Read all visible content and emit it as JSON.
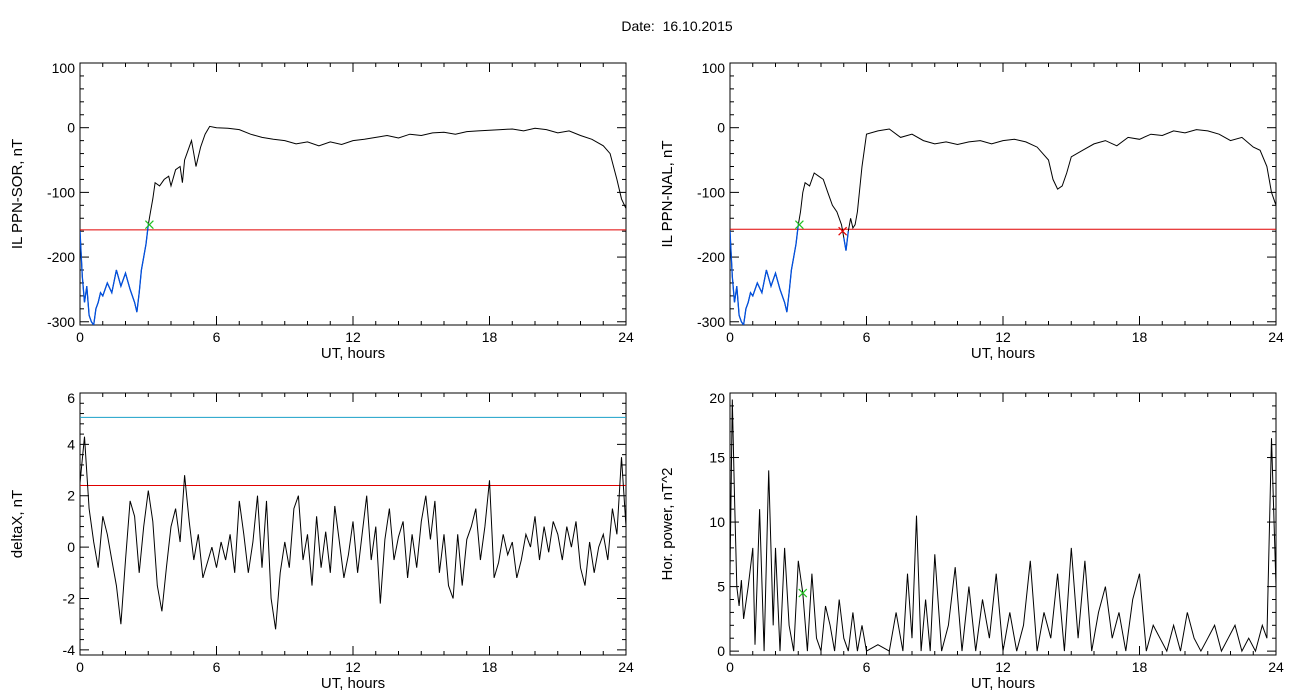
{
  "page": {
    "title": "Date:  16.10.2015"
  },
  "colors": {
    "trace": "#000000",
    "threshold_red": "#e00000",
    "threshold_blue": "#1aa0c8",
    "segment_blue": "#0050e0",
    "marker_green": "#20c020",
    "marker_red": "#e00000"
  },
  "chart_data": [
    {
      "id": "sor",
      "type": "line",
      "xlabel": "UT, hours",
      "ylabel": "IL PPN-SOR, nT",
      "xlim": [
        0,
        24
      ],
      "ylim": [
        -305,
        100
      ],
      "xticks": [
        0,
        6,
        12,
        18,
        24
      ],
      "yticks": [
        100,
        0,
        -100,
        -200,
        -300
      ],
      "hlines": [
        {
          "y": -158,
          "color": "threshold_red"
        }
      ],
      "markers": [
        {
          "x": 3.05,
          "y": -150,
          "color": "marker_green"
        }
      ],
      "highlight": {
        "from": 0,
        "to": 3.05,
        "color": "segment_blue"
      },
      "series": [
        {
          "x": [
            0,
            0.1,
            0.2,
            0.3,
            0.4,
            0.5,
            0.6,
            0.7,
            0.8,
            0.9,
            1.0,
            1.2,
            1.4,
            1.6,
            1.8,
            2.0,
            2.2,
            2.4,
            2.5,
            2.6,
            2.7,
            2.8,
            2.9,
            3.0,
            3.1,
            3.2,
            3.3,
            3.5,
            3.7,
            3.9,
            4.0,
            4.2,
            4.4,
            4.5,
            4.6,
            4.7,
            4.8,
            4.9,
            5.0,
            5.1,
            5.3,
            5.5,
            5.7,
            6.0,
            6.5,
            7.0,
            7.5,
            8.0,
            8.5,
            9.0,
            9.5,
            10.0,
            10.5,
            11.0,
            11.5,
            12.0,
            12.5,
            13.0,
            13.5,
            14.0,
            14.5,
            15.0,
            15.5,
            16.0,
            16.5,
            17.0,
            17.5,
            18.0,
            18.5,
            19.0,
            19.5,
            20.0,
            20.5,
            21.0,
            21.5,
            22.0,
            22.5,
            23.0,
            23.3,
            23.6,
            23.8,
            24.0
          ],
          "y": [
            -160,
            -230,
            -270,
            -245,
            -290,
            -300,
            -305,
            -280,
            -270,
            -255,
            -260,
            -240,
            -255,
            -220,
            -245,
            -225,
            -250,
            -270,
            -285,
            -255,
            -220,
            -200,
            -180,
            -150,
            -130,
            -110,
            -85,
            -90,
            -80,
            -75,
            -90,
            -65,
            -60,
            -85,
            -50,
            -40,
            -30,
            -20,
            -40,
            -60,
            -30,
            -10,
            2,
            0,
            -1,
            -3,
            -10,
            -15,
            -18,
            -20,
            -25,
            -22,
            -28,
            -22,
            -26,
            -20,
            -18,
            -15,
            -12,
            -16,
            -10,
            -12,
            -8,
            -7,
            -10,
            -6,
            -5,
            -4,
            -3,
            -2,
            -5,
            -1,
            -3,
            -8,
            -5,
            -12,
            -18,
            -28,
            -40,
            -80,
            -110,
            -125
          ]
        }
      ]
    },
    {
      "id": "nal",
      "type": "line",
      "xlabel": "UT, hours",
      "ylabel": "IL PPN-NAL, nT",
      "xlim": [
        0,
        24
      ],
      "ylim": [
        -305,
        100
      ],
      "xticks": [
        0,
        6,
        12,
        18,
        24
      ],
      "yticks": [
        100,
        0,
        -100,
        -200,
        -300
      ],
      "hlines": [
        {
          "y": -157,
          "color": "threshold_red"
        }
      ],
      "markers": [
        {
          "x": 3.05,
          "y": -150,
          "color": "marker_green"
        },
        {
          "x": 4.95,
          "y": -160,
          "color": "marker_red"
        }
      ],
      "highlight": {
        "from": 0,
        "to": 3.05,
        "color": "segment_blue"
      },
      "highlight2": {
        "from": 4.95,
        "to": 5.2,
        "color": "segment_blue"
      },
      "series": [
        {
          "x": [
            0,
            0.1,
            0.2,
            0.3,
            0.4,
            0.5,
            0.6,
            0.7,
            0.8,
            0.9,
            1.0,
            1.2,
            1.4,
            1.6,
            1.8,
            2.0,
            2.2,
            2.4,
            2.5,
            2.6,
            2.7,
            2.8,
            2.9,
            3.0,
            3.1,
            3.2,
            3.3,
            3.5,
            3.7,
            3.9,
            4.1,
            4.3,
            4.5,
            4.7,
            4.9,
            5.0,
            5.1,
            5.2,
            5.3,
            5.4,
            5.5,
            5.6,
            5.8,
            6.0,
            6.5,
            7.0,
            7.5,
            8.0,
            8.5,
            9.0,
            9.5,
            10.0,
            10.5,
            11.0,
            11.5,
            12.0,
            12.5,
            13.0,
            13.5,
            14.0,
            14.2,
            14.4,
            14.6,
            14.8,
            15.0,
            15.5,
            16.0,
            16.5,
            17.0,
            17.5,
            18.0,
            18.5,
            19.0,
            19.5,
            20.0,
            20.5,
            21.0,
            21.5,
            22.0,
            22.5,
            23.0,
            23.3,
            23.6,
            23.8,
            24.0
          ],
          "y": [
            -160,
            -230,
            -270,
            -245,
            -290,
            -300,
            -305,
            -280,
            -270,
            -255,
            -260,
            -240,
            -255,
            -220,
            -245,
            -225,
            -250,
            -270,
            -285,
            -255,
            -220,
            -200,
            -180,
            -150,
            -130,
            -100,
            -85,
            -90,
            -70,
            -75,
            -80,
            -100,
            -120,
            -130,
            -150,
            -170,
            -190,
            -160,
            -140,
            -155,
            -150,
            -130,
            -60,
            -10,
            -5,
            -2,
            -15,
            -10,
            -20,
            -25,
            -22,
            -26,
            -22,
            -20,
            -25,
            -20,
            -18,
            -22,
            -30,
            -50,
            -80,
            -95,
            -90,
            -70,
            -45,
            -35,
            -25,
            -20,
            -28,
            -15,
            -18,
            -10,
            -12,
            -5,
            -8,
            -3,
            -5,
            -10,
            -20,
            -15,
            -30,
            -35,
            -60,
            -100,
            -120
          ]
        }
      ]
    },
    {
      "id": "deltax",
      "type": "line",
      "xlabel": "UT, hours",
      "ylabel": "deltaX, nT",
      "xlim": [
        0,
        24
      ],
      "ylim": [
        -4.2,
        6
      ],
      "xticks": [
        0,
        6,
        12,
        18,
        24
      ],
      "yticks": [
        6,
        4,
        2,
        0,
        -2,
        -4
      ],
      "hlines": [
        {
          "y": 5.05,
          "color": "threshold_blue"
        },
        {
          "y": 2.4,
          "color": "threshold_red"
        }
      ],
      "markers": [],
      "series": [
        {
          "x": [
            0,
            0.2,
            0.4,
            0.6,
            0.8,
            1.0,
            1.2,
            1.4,
            1.6,
            1.8,
            2.0,
            2.2,
            2.4,
            2.6,
            2.8,
            3.0,
            3.2,
            3.4,
            3.6,
            3.8,
            4.0,
            4.2,
            4.4,
            4.6,
            4.8,
            5.0,
            5.2,
            5.4,
            5.6,
            5.8,
            6.0,
            6.2,
            6.4,
            6.6,
            6.8,
            7.0,
            7.2,
            7.4,
            7.6,
            7.8,
            8.0,
            8.2,
            8.4,
            8.6,
            8.8,
            9.0,
            9.2,
            9.4,
            9.6,
            9.8,
            10.0,
            10.2,
            10.4,
            10.6,
            10.8,
            11.0,
            11.2,
            11.4,
            11.6,
            11.8,
            12.0,
            12.2,
            12.4,
            12.6,
            12.8,
            13.0,
            13.2,
            13.4,
            13.6,
            13.8,
            14.0,
            14.2,
            14.4,
            14.6,
            14.8,
            15.0,
            15.2,
            15.4,
            15.6,
            15.8,
            16.0,
            16.2,
            16.4,
            16.6,
            16.8,
            17.0,
            17.2,
            17.4,
            17.6,
            17.8,
            18.0,
            18.2,
            18.4,
            18.6,
            18.8,
            19.0,
            19.2,
            19.4,
            19.6,
            19.8,
            20.0,
            20.2,
            20.4,
            20.6,
            20.8,
            21.0,
            21.2,
            21.4,
            21.6,
            21.8,
            22.0,
            22.2,
            22.4,
            22.6,
            22.8,
            23.0,
            23.2,
            23.4,
            23.6,
            23.8,
            24.0
          ],
          "y": [
            2.5,
            4.3,
            1.5,
            0.2,
            -0.8,
            1.2,
            0.5,
            -0.5,
            -1.5,
            -3.0,
            -0.5,
            1.8,
            1.2,
            -1.0,
            0.8,
            2.2,
            1.0,
            -1.5,
            -2.5,
            -0.8,
            0.8,
            1.5,
            0.2,
            2.8,
            1.0,
            -0.5,
            0.5,
            -1.2,
            -0.6,
            0.0,
            -0.8,
            0.2,
            -0.5,
            0.5,
            -1.0,
            1.8,
            0.5,
            -1.0,
            0.2,
            2.0,
            -0.8,
            1.8,
            -2.0,
            -3.2,
            -1.0,
            0.2,
            -0.8,
            1.5,
            2.0,
            -0.5,
            0.5,
            -1.5,
            1.2,
            -0.8,
            0.6,
            -1.0,
            1.6,
            0.2,
            -1.2,
            -0.3,
            1.0,
            -1.0,
            0.5,
            2.0,
            -0.5,
            0.8,
            -2.2,
            0.3,
            1.5,
            -0.5,
            0.4,
            1.0,
            -1.2,
            0.5,
            -0.8,
            1.0,
            2.0,
            0.3,
            1.8,
            -1.0,
            0.5,
            -1.5,
            -2.0,
            0.5,
            -1.5,
            0.3,
            0.8,
            1.5,
            -0.5,
            0.8,
            2.6,
            -1.2,
            -0.6,
            0.5,
            -0.3,
            0.2,
            -1.2,
            -0.5,
            0.5,
            0.0,
            1.2,
            -0.5,
            0.8,
            -0.2,
            1.0,
            0.5,
            -0.5,
            0.8,
            0.0,
            1.0,
            -0.8,
            -1.5,
            0.2,
            -1.0,
            0.0,
            0.5,
            -0.5,
            1.5,
            0.5,
            3.5,
            0.8
          ]
        }
      ]
    },
    {
      "id": "power",
      "type": "line",
      "xlabel": "UT, hours",
      "ylabel": "Hor. power, nT^2",
      "xlim": [
        0,
        24
      ],
      "ylim": [
        -0.3,
        20
      ],
      "xticks": [
        0,
        6,
        12,
        18,
        24
      ],
      "yticks": [
        20,
        15,
        10,
        5,
        0
      ],
      "hlines": [],
      "markers": [
        {
          "x": 3.2,
          "y": 4.5,
          "color": "marker_green"
        }
      ],
      "series": [
        {
          "x": [
            0,
            0.1,
            0.2,
            0.3,
            0.4,
            0.5,
            0.6,
            0.8,
            1.0,
            1.1,
            1.3,
            1.5,
            1.7,
            1.9,
            2.0,
            2.2,
            2.4,
            2.6,
            2.8,
            3.0,
            3.2,
            3.4,
            3.6,
            3.8,
            4.0,
            4.2,
            4.4,
            4.6,
            4.8,
            5.0,
            5.2,
            5.4,
            5.6,
            5.8,
            6.0,
            6.5,
            7.0,
            7.3,
            7.6,
            7.8,
            8.0,
            8.2,
            8.4,
            8.6,
            8.8,
            9.0,
            9.3,
            9.6,
            9.9,
            10.2,
            10.5,
            10.8,
            11.1,
            11.4,
            11.7,
            12.0,
            12.3,
            12.6,
            12.9,
            13.2,
            13.5,
            13.8,
            14.1,
            14.4,
            14.7,
            15.0,
            15.3,
            15.6,
            15.9,
            16.2,
            16.5,
            16.8,
            17.1,
            17.4,
            17.7,
            18.0,
            18.3,
            18.6,
            18.9,
            19.2,
            19.5,
            19.8,
            20.1,
            20.4,
            20.7,
            21.0,
            21.3,
            21.6,
            21.9,
            22.2,
            22.5,
            22.8,
            23.1,
            23.4,
            23.6,
            23.8,
            24.0
          ],
          "y": [
            6,
            19.5,
            12,
            5,
            3.5,
            5.5,
            2.5,
            5,
            8,
            0.5,
            11,
            0,
            14,
            2,
            8,
            0,
            8,
            2,
            0,
            7,
            4.5,
            0,
            6,
            1,
            0,
            3.5,
            2,
            0,
            4,
            1,
            0,
            3,
            0,
            2,
            0,
            0.5,
            0,
            3,
            0,
            6,
            1,
            10.5,
            0,
            4,
            0,
            7.5,
            0,
            2,
            6.5,
            0,
            5,
            0,
            4,
            1,
            6,
            0,
            3,
            0,
            2,
            7,
            0,
            3,
            1,
            6,
            0,
            8,
            1,
            7,
            0,
            3,
            5,
            1,
            3,
            0,
            4,
            6,
            0,
            2,
            1,
            0,
            2,
            0,
            3,
            1,
            0,
            1,
            2,
            0,
            1,
            2,
            0,
            1,
            0,
            2,
            1,
            16.5,
            5
          ]
        }
      ]
    }
  ]
}
